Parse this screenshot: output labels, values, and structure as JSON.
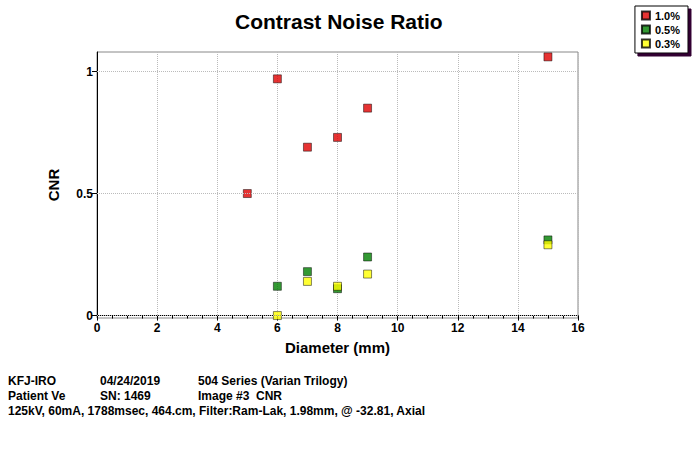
{
  "chart_data": {
    "type": "scatter",
    "title": "Contrast Noise Ratio",
    "x_label": "Diameter (mm)",
    "y_label": "CNR",
    "xlim": [
      0,
      16
    ],
    "xticks": [
      0,
      2,
      4,
      6,
      8,
      10,
      12,
      14,
      16
    ],
    "ylim": [
      -0.01,
      1.08
    ],
    "yticks": [
      0,
      0.5,
      1
    ],
    "grid": true,
    "legend": "upper right",
    "marker": "square",
    "series": [
      {
        "name": "1.0%",
        "color": "#e00000",
        "x": [
          5,
          6,
          7,
          8,
          9,
          15
        ],
        "values": [
          0.5,
          0.97,
          0.69,
          0.73,
          0.85,
          1.06
        ]
      },
      {
        "name": "0.5%",
        "color": "#008000",
        "x": [
          6,
          7,
          8,
          9,
          15
        ],
        "values": [
          0.12,
          0.18,
          0.11,
          0.24,
          0.31
        ]
      },
      {
        "name": "0.3%",
        "color": "#ffff00",
        "x": [
          6,
          7,
          8,
          9,
          15
        ],
        "values": [
          0.0,
          0.14,
          0.12,
          0.17,
          0.29
        ]
      }
    ],
    "annotations": [
      [
        "KFJ-IRO",
        "04/24/2019",
        "504 Series (Varian Trilogy)"
      ],
      [
        "Patient Ve",
        "SN: 1469",
        "Image #3  CNR"
      ],
      [
        "125kV, 60mA, 1788msec, 464.cm, Filter:Ram-Lak, 1.98mm, @ -32.81, Axial"
      ]
    ]
  }
}
